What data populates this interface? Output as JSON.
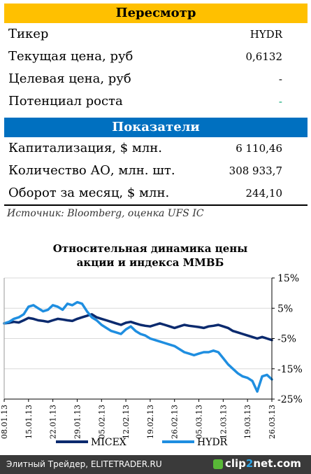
{
  "review": {
    "header": "Пересмотр",
    "rows": [
      {
        "label": "Тикер",
        "value": "HYDR"
      },
      {
        "label": "Текущая цена, руб",
        "value": "0,6132"
      },
      {
        "label": "Целевая цена, руб",
        "value": "-"
      },
      {
        "label": "Потенциал роста",
        "value": "-"
      }
    ]
  },
  "indicators": {
    "header": "Показатели",
    "rows": [
      {
        "label": "Капитализация, $ млн.",
        "value": "6 110,46"
      },
      {
        "label": "Количество АО, млн. шт.",
        "value": "308 933,7"
      },
      {
        "label": "Оборот за месяц, $ млн.",
        "value": "244,10"
      }
    ]
  },
  "source": "Источник: Bloomberg, оценка UFS IC",
  "colors": {
    "header_yellow": "#ffc000",
    "header_blue": "#0070c0",
    "micex_line": "#0b2a6e",
    "hydr_line": "#1f8ee0",
    "growth_green": "#00a36c"
  },
  "chart_data": {
    "type": "line",
    "title_line1": "Относительная динамика цены",
    "title_line2": "акции и индекса ММВБ",
    "y_axis": {
      "side": "right",
      "ylim": [
        -25,
        15
      ],
      "ticks": [
        "15%",
        "5%",
        "-5%",
        "-15%",
        "-25%"
      ],
      "tick_values": [
        15,
        5,
        -5,
        -15,
        -25
      ]
    },
    "x_ticks": [
      "08.01.13",
      "15.01.13",
      "22.01.13",
      "29.01.13",
      "05.02.13",
      "12.02.13",
      "19.02.13",
      "26.02.13",
      "05.03.13",
      "12.03.13",
      "19.03.13",
      "26.03.13"
    ],
    "x_count": 56,
    "legend_position": "bottom",
    "series": [
      {
        "name": "MICEX",
        "values": [
          0,
          0.2,
          0.5,
          0.3,
          1.0,
          1.8,
          1.5,
          1.0,
          0.8,
          0.5,
          1.0,
          1.5,
          1.3,
          1.0,
          0.8,
          1.5,
          2.0,
          2.5,
          3.0,
          2.0,
          1.5,
          1.0,
          0.5,
          0.0,
          -0.5,
          0.2,
          0.5,
          0.0,
          -0.5,
          -0.8,
          -1.0,
          -0.5,
          0.0,
          -0.5,
          -1.0,
          -1.5,
          -1.0,
          -0.5,
          -0.8,
          -1.0,
          -1.2,
          -1.5,
          -1.0,
          -0.8,
          -0.5,
          -1.0,
          -1.5,
          -2.5,
          -3.0,
          -3.5,
          -4.0,
          -4.5,
          -5.0,
          -4.5,
          -5.0,
          -5.5
        ]
      },
      {
        "name": "HYDR",
        "values": [
          0,
          0.5,
          1.5,
          2.0,
          3.0,
          5.5,
          6.0,
          5.0,
          4.0,
          4.5,
          6.0,
          5.5,
          4.5,
          6.5,
          6.0,
          7.0,
          6.5,
          4.0,
          2.0,
          1.0,
          -0.5,
          -1.5,
          -2.5,
          -3.0,
          -3.5,
          -2.0,
          -1.0,
          -2.5,
          -3.5,
          -4.0,
          -5.0,
          -5.5,
          -6.0,
          -6.5,
          -7.0,
          -7.5,
          -8.5,
          -9.5,
          -10.0,
          -10.5,
          -10.0,
          -9.5,
          -9.5,
          -9.0,
          -9.5,
          -11.5,
          -13.5,
          -15.0,
          -16.5,
          -17.5,
          -18.0,
          -19.0,
          -22.5,
          -17.5,
          -17.0,
          -18.5
        ]
      }
    ]
  },
  "footer": {
    "text": "Элитный Трейдер, ELITETRADER.RU",
    "logo_prefix": "clip",
    "logo_two": "2",
    "logo_suffix": "net.com"
  }
}
